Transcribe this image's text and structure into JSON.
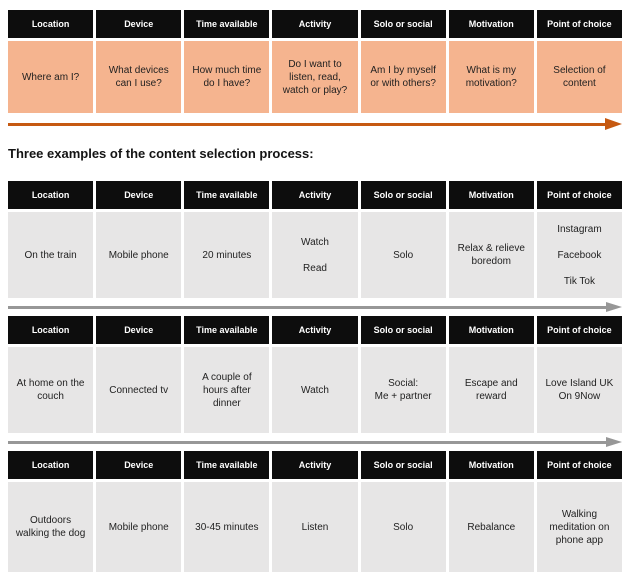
{
  "colors": {
    "header_bg": "#0d0d0d",
    "header_text": "#ffffff",
    "process_row_bg": "#f5b48f",
    "process_arrow": "#c65911",
    "example_row_bg": "#e7e6e6",
    "example_arrow": "#979797"
  },
  "headers": [
    "Location",
    "Device",
    "Time available",
    "Activity",
    "Solo or social",
    "Motivation",
    "Point of choice"
  ],
  "process": {
    "cells": [
      "Where am I?",
      "What devices can I use?",
      "How much time do I have?",
      "Do I want to listen, read, watch or play?",
      "Am I by myself or with others?",
      "What is my motivation?",
      "Selection of content"
    ]
  },
  "section_title": "Three examples of the content selection process:",
  "examples": [
    {
      "cells": [
        "On the train",
        "Mobile phone",
        "20 minutes",
        "Watch\n\nRead",
        "Solo",
        "Relax & relieve boredom",
        "Instagram\n\nFacebook\n\nTik Tok"
      ]
    },
    {
      "cells": [
        "At home on the couch",
        "Connected tv",
        "A couple of hours after dinner",
        "Watch",
        "Social:\nMe + partner",
        "Escape and reward",
        "Love Island UK\nOn 9Now"
      ]
    },
    {
      "cells": [
        "Outdoors\nwalking the dog",
        "Mobile phone",
        "30-45 minutes",
        "Listen",
        "Solo",
        "Rebalance",
        "Walking\nmeditation on\nphone app"
      ]
    }
  ]
}
